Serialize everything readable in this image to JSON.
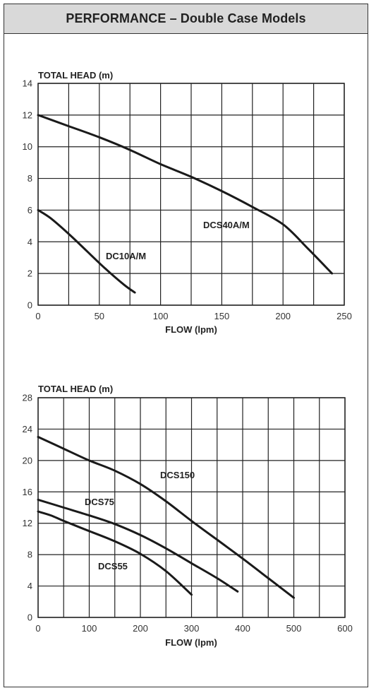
{
  "header": {
    "title": "PERFORMANCE – Double Case Models"
  },
  "chart_data": [
    {
      "type": "line",
      "ylabel": "TOTAL HEAD (m)",
      "xlabel": "FLOW (lpm)",
      "xlim": [
        0,
        250
      ],
      "ylim": [
        0,
        14
      ],
      "x_ticks": [
        0,
        50,
        100,
        150,
        200,
        250
      ],
      "y_ticks": [
        0,
        2,
        4,
        6,
        8,
        10,
        12,
        14
      ],
      "x_tick_labels": [
        "0",
        "50",
        "100",
        "150",
        "200",
        "250"
      ],
      "y_tick_labels": [
        "0",
        "2",
        "4",
        "6",
        "8",
        "10",
        "12",
        "14"
      ],
      "x_grid": [
        0,
        25,
        50,
        75,
        100,
        125,
        150,
        175,
        200,
        225,
        250
      ],
      "grid": true,
      "series": [
        {
          "name": "DCS40A/M",
          "x": [
            0,
            25,
            50,
            75,
            100,
            125,
            150,
            175,
            200,
            220,
            240
          ],
          "y": [
            12,
            11.3,
            10.6,
            9.8,
            8.9,
            8.1,
            7.2,
            6.2,
            5.1,
            3.6,
            2
          ]
        },
        {
          "name": "DC10A/M",
          "x": [
            0,
            10,
            25,
            40,
            55,
            70,
            79
          ],
          "y": [
            6,
            5.5,
            4.5,
            3.4,
            2.3,
            1.3,
            0.8
          ]
        }
      ]
    },
    {
      "type": "line",
      "ylabel": "TOTAL HEAD (m)",
      "xlabel": "FLOW (lpm)",
      "xlim": [
        0,
        600
      ],
      "ylim": [
        0,
        28
      ],
      "x_ticks": [
        0,
        100,
        200,
        300,
        400,
        500,
        600
      ],
      "y_ticks": [
        0,
        4,
        8,
        12,
        16,
        20,
        24,
        28
      ],
      "x_tick_labels": [
        "0",
        "100",
        "200",
        "300",
        "400",
        "500",
        "600"
      ],
      "y_tick_labels": [
        "0",
        "4",
        "8",
        "12",
        "16",
        "20",
        "24",
        "28"
      ],
      "x_grid": [
        0,
        50,
        100,
        150,
        200,
        250,
        300,
        350,
        400,
        450,
        500,
        550,
        600
      ],
      "grid": true,
      "series": [
        {
          "name": "DCS150",
          "x": [
            0,
            50,
            100,
            150,
            200,
            250,
            300,
            350,
            400,
            450,
            500
          ],
          "y": [
            23,
            21.5,
            20,
            18.7,
            17,
            14.8,
            12.3,
            9.9,
            7.5,
            5,
            2.5
          ]
        },
        {
          "name": "DCS75",
          "x": [
            0,
            50,
            100,
            150,
            200,
            250,
            300,
            350,
            390
          ],
          "y": [
            15,
            14,
            13,
            11.9,
            10.5,
            8.8,
            6.9,
            5,
            3.3
          ]
        },
        {
          "name": "DCS55",
          "x": [
            0,
            25,
            50,
            100,
            150,
            200,
            250,
            300
          ],
          "y": [
            13.5,
            13,
            12.3,
            11,
            9.7,
            8.1,
            5.9,
            2.9
          ]
        }
      ]
    }
  ]
}
